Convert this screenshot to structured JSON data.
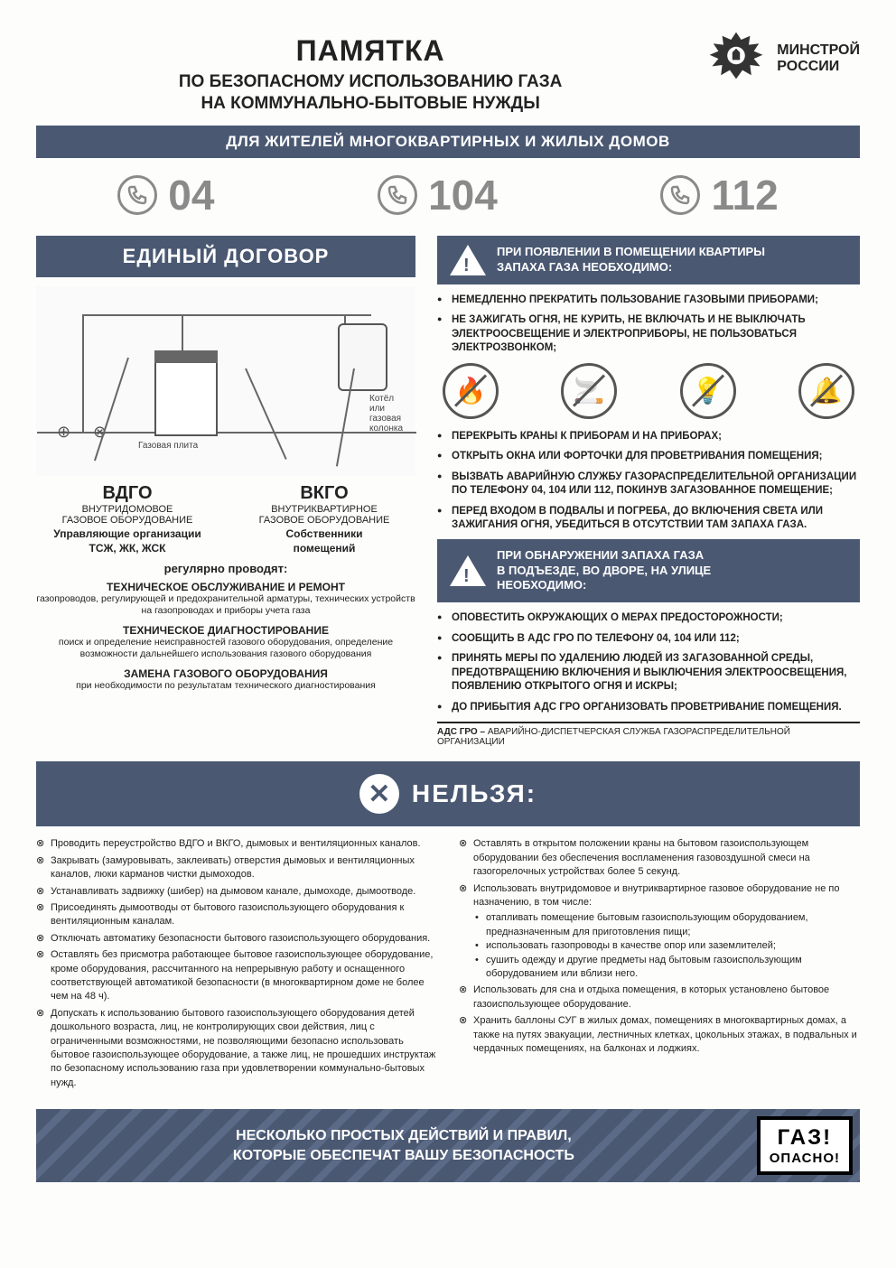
{
  "colors": {
    "banner_bg": "#4a5872",
    "banner_fg": "#ffffff",
    "phone_gray": "#8a8a8a",
    "text": "#222222"
  },
  "header": {
    "main_title": "ПАМЯТКА",
    "subtitle_line1": "ПО БЕЗОПАСНОМУ ИСПОЛЬЗОВАНИЮ ГАЗА",
    "subtitle_line2": "НА КОММУНАЛЬНО-БЫТОВЫЕ НУЖДЫ",
    "org_line1": "МИНСТРОЙ",
    "org_line2": "РОССИИ"
  },
  "banner1": "ДЛЯ ЖИТЕЛЕЙ МНОГОКВАРТИРНЫХ И ЖИЛЫХ ДОМОВ",
  "phones": [
    "04",
    "104",
    "112"
  ],
  "contract": {
    "title": "ЕДИНЫЙ ДОГОВОР",
    "diagram": {
      "stove_label": "Газовая плита",
      "boiler_label1": "Котёл",
      "boiler_label2": "или",
      "boiler_label3": "газовая",
      "boiler_label4": "колонка"
    },
    "vdgo": {
      "abbr": "ВДГО",
      "full1": "ВНУТРИДОМОВОЕ",
      "full2": "ГАЗОВОЕ ОБОРУДОВАНИЕ",
      "owner1": "Управляющие организации",
      "owner2": "ТСЖ, ЖК, ЖСК"
    },
    "vkgo": {
      "abbr": "ВКГО",
      "full1": "ВНУТРИКВАРТИРНОЕ",
      "full2": "ГАЗОВОЕ ОБОРУДОВАНИЕ",
      "owner1": "Собственники",
      "owner2": "помещений"
    },
    "regularly": "регулярно проводят:",
    "services": [
      {
        "title": "ТЕХНИЧЕСКОЕ ОБСЛУЖИВАНИЕ И РЕМОНТ",
        "desc": "газопроводов, регулирующей и предохранительной арматуры, технических устройств на газопроводах и приборы учета газа"
      },
      {
        "title": "ТЕХНИЧЕСКОЕ ДИАГНОСТИРОВАНИЕ",
        "desc": "поиск и определение неисправностей газового оборудования, определение возможности дальнейшего использования газового оборудования"
      },
      {
        "title": "ЗАМЕНА ГАЗОВОГО ОБОРУДОВАНИЯ",
        "desc": "при необходимости по результатам технического диагностирования"
      }
    ]
  },
  "smell_apartment": {
    "heading_line1": "ПРИ ПОЯВЛЕНИИ В ПОМЕЩЕНИИ КВАРТИРЫ",
    "heading_line2": "ЗАПАХА ГАЗА НЕОБХОДИМО:",
    "before_icons": [
      "НЕМЕДЛЕННО ПРЕКРАТИТЬ ПОЛЬЗОВАНИЕ ГАЗОВЫМИ ПРИБОРАМИ;",
      "НЕ ЗАЖИГАТЬ ОГНЯ, НЕ КУРИТЬ, НЕ ВКЛЮЧАТЬ И НЕ ВЫКЛЮЧАТЬ ЭЛЕКТРООСВЕЩЕНИЕ И ЭЛЕКТРОПРИБОРЫ, НЕ ПОЛЬЗОВАТЬСЯ ЭЛЕКТРОЗВОНКОМ;"
    ],
    "prohibition_icons": [
      "flame",
      "cigarette",
      "bulb",
      "bell"
    ],
    "after_icons": [
      "ПЕРЕКРЫТЬ КРАНЫ К ПРИБОРАМ И НА ПРИБОРАХ;",
      "ОТКРЫТЬ ОКНА ИЛИ ФОРТОЧКИ ДЛЯ ПРОВЕТРИВАНИЯ ПОМЕЩЕНИЯ;",
      "ВЫЗВАТЬ АВАРИЙНУЮ СЛУЖБУ ГАЗОРАСПРЕДЕЛИТЕЛЬНОЙ ОРГАНИЗАЦИИ ПО ТЕЛЕФОНУ 04, 104 ИЛИ 112, ПОКИНУВ ЗАГАЗОВАННОЕ ПОМЕЩЕНИЕ;",
      "ПЕРЕД ВХОДОМ В ПОДВАЛЫ И ПОГРЕБА, ДО ВКЛЮЧЕНИЯ СВЕТА ИЛИ ЗАЖИГАНИЯ ОГНЯ, УБЕДИТЬСЯ В ОТСУТСТВИИ ТАМ ЗАПАХА ГАЗА."
    ]
  },
  "smell_outside": {
    "heading_line1": "ПРИ ОБНАРУЖЕНИИ ЗАПАХА ГАЗА",
    "heading_line2": "В ПОДЪЕЗДЕ, ВО ДВОРЕ, НА УЛИЦЕ",
    "heading_line3": "НЕОБХОДИМО:",
    "items": [
      "ОПОВЕСТИТЬ ОКРУЖАЮЩИХ О МЕРАХ ПРЕДОСТОРОЖНОСТИ;",
      "СООБЩИТЬ В АДС ГРО ПО ТЕЛЕФОНУ 04, 104 ИЛИ 112;",
      "ПРИНЯТЬ МЕРЫ ПО УДАЛЕНИЮ ЛЮДЕЙ ИЗ ЗАГАЗОВАННОЙ СРЕДЫ, ПРЕДОТВРАЩЕНИЮ ВКЛЮЧЕНИЯ И ВЫКЛЮЧЕНИЯ ЭЛЕКТРООСВЕЩЕНИЯ, ПОЯВЛЕНИЮ ОТКРЫТОГО ОГНЯ И ИСКРЫ;",
      "ДО ПРИБЫТИЯ АДС ГРО ОРГАНИЗОВАТЬ ПРОВЕТРИВАНИЕ ПОМЕЩЕНИЯ."
    ],
    "footnote_term": "АДС ГРО –",
    "footnote_def": " АВАРИЙНО-ДИСПЕТЧЕРСКАЯ СЛУЖБА ГАЗОРАСПРЕДЕЛИТЕЛЬНОЙ ОРГАНИЗАЦИИ"
  },
  "forbidden": {
    "banner": "НЕЛЬЗЯ:",
    "left": [
      "Проводить переустройство ВДГО и ВКГО, дымовых и вентиляционных каналов.",
      "Закрывать (замуровывать, заклеивать) отверстия дымовых и вентиляционных каналов, люки карманов чистки дымоходов.",
      "Устанавливать задвижку (шибер) на дымовом канале, дымоходе, дымоотводе.",
      "Присоединять дымоотводы от бытового газоиспользующего оборудования к вентиляционным каналам.",
      "Отключать автоматику безопасности бытового газоиспользующего оборудования.",
      "Оставлять без присмотра работающее бытовое газоиспользующее оборудование, кроме оборудования, рассчитанного на непрерывную работу и оснащенного соответствующей автоматикой безопасности (в многоквартирном доме не более чем на 48 ч).",
      "Допускать к использованию бытового газоиспользующего оборудования детей дошкольного возраста, лиц, не контролирующих свои действия, лиц с ограниченными возможностями, не позволяющими безопасно использовать бытовое газоиспользующее оборудование, а также лиц, не прошедших инструктаж по безопасному использованию газа при удовлетворении коммунально-бытовых нужд."
    ],
    "right": [
      {
        "text": "Оставлять в открытом положении краны на бытовом газоиспользующем оборудовании без обеспечения воспламенения газовоздушной смеси на газогорелочных устройствах более 5 секунд."
      },
      {
        "text": "Использовать внутридомовое и внутриквартирное газовое оборудование не по назначению, в том числе:",
        "sub": [
          "отапливать помещение бытовым газоиспользующим оборудованием, предназначенным для приготовления пищи;",
          "использовать газопроводы в качестве опор или заземлителей;",
          "сушить одежду и другие предметы над бытовым газоиспользующим оборудованием или вблизи него."
        ]
      },
      {
        "text": "Использовать для сна и отдыха помещения, в которых установлено бытовое газоиспользующее оборудование."
      },
      {
        "text": "Хранить баллоны СУГ в жилых домах, помещениях в многоквартирных домах, а также на путях эвакуации, лестничных клетках, цокольных этажах, в подвальных и чердачных помещениях, на балконах и лоджиях."
      }
    ]
  },
  "footer": {
    "line1": "НЕСКОЛЬКО ПРОСТЫХ ДЕЙСТВИЙ И ПРАВИЛ,",
    "line2": "КОТОРЫЕ ОБЕСПЕЧАТ ВАШУ БЕЗОПАСНОСТЬ",
    "stamp_top": "ГАЗ!",
    "stamp_bot": "ОПАСНО!"
  }
}
